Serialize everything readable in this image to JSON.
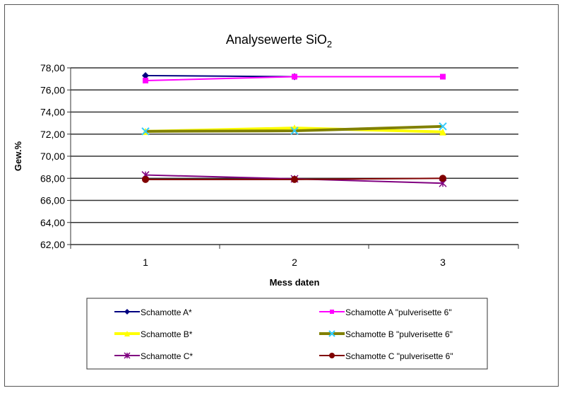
{
  "chart_data": {
    "type": "line",
    "title": "Analysewerte SiO",
    "title_subscript": "2",
    "xlabel": "Mess daten",
    "ylabel": "Gew.%",
    "categories": [
      "1",
      "2",
      "3"
    ],
    "ylim": [
      62,
      78
    ],
    "yticks": [
      "62,00",
      "64,00",
      "66,00",
      "68,00",
      "70,00",
      "72,00",
      "74,00",
      "76,00",
      "78,00"
    ],
    "grid": true,
    "legend_position": "bottom",
    "series": [
      {
        "name": "Schamotte A*",
        "values": [
          77.3,
          77.2,
          null
        ],
        "color": "#000080",
        "marker": "diamond",
        "width": 2
      },
      {
        "name": "Schamotte A \"pulverisette 6\"",
        "values": [
          76.85,
          77.2,
          77.2
        ],
        "color": "#ff00ff",
        "marker": "square",
        "width": 2
      },
      {
        "name": "Schamotte B*",
        "values": [
          72.25,
          72.55,
          72.2
        ],
        "color": "#ffff00",
        "marker": "triangle",
        "width": 4
      },
      {
        "name": "Schamotte B \"pulverisette 6\"",
        "values": [
          72.25,
          72.3,
          72.7
        ],
        "color": "#808000",
        "marker": "x",
        "marker_color": "#33ccff",
        "width": 4
      },
      {
        "name": "Schamotte C*",
        "values": [
          68.3,
          67.95,
          67.55
        ],
        "color": "#800080",
        "marker": "star",
        "width": 2
      },
      {
        "name": "Schamotte C \"pulverisette 6\"",
        "values": [
          67.9,
          67.9,
          68.0
        ],
        "color": "#800000",
        "marker": "circle",
        "width": 2
      }
    ]
  }
}
